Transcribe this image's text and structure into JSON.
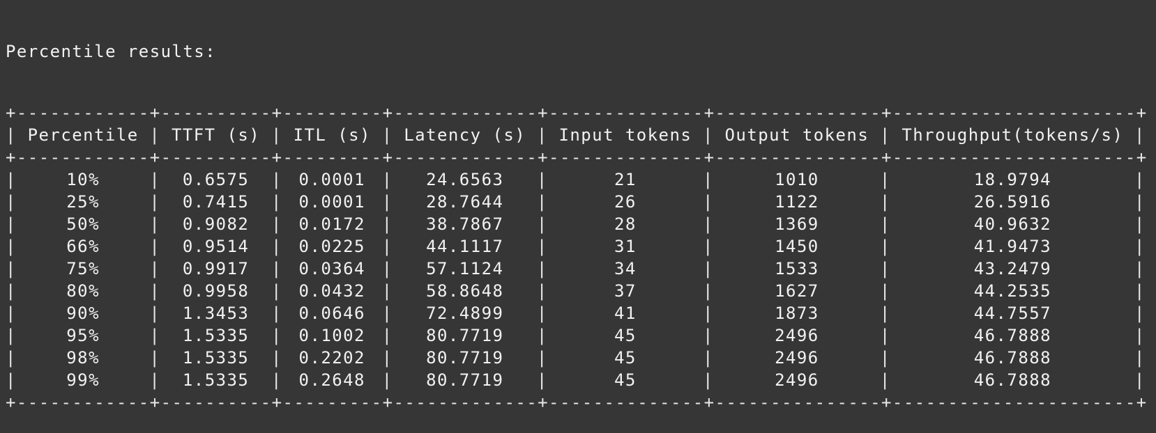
{
  "terminal": {
    "heading": "Percentile results:",
    "table": {
      "headers": [
        "Percentile",
        "TTFT (s)",
        "ITL (s)",
        "Latency (s)",
        "Input tokens",
        "Output tokens",
        "Throughput(tokens/s)"
      ],
      "rows": [
        [
          "10%",
          "0.6575",
          "0.0001",
          "24.6563",
          "21",
          "1010",
          "18.9794"
        ],
        [
          "25%",
          "0.7415",
          "0.0001",
          "28.7644",
          "26",
          "1122",
          "26.5916"
        ],
        [
          "50%",
          "0.9082",
          "0.0172",
          "38.7867",
          "28",
          "1369",
          "40.9632"
        ],
        [
          "66%",
          "0.9514",
          "0.0225",
          "44.1117",
          "31",
          "1450",
          "41.9473"
        ],
        [
          "75%",
          "0.9917",
          "0.0364",
          "57.1124",
          "34",
          "1533",
          "43.2479"
        ],
        [
          "80%",
          "0.9958",
          "0.0432",
          "58.8648",
          "37",
          "1627",
          "44.2535"
        ],
        [
          "90%",
          "1.3453",
          "0.0646",
          "72.4899",
          "41",
          "1873",
          "44.7557"
        ],
        [
          "95%",
          "1.5335",
          "0.1002",
          "80.7719",
          "45",
          "2496",
          "46.7888"
        ],
        [
          "98%",
          "1.5335",
          "0.2202",
          "80.7719",
          "45",
          "2496",
          "46.7888"
        ],
        [
          "99%",
          "1.5335",
          "0.2648",
          "80.7719",
          "45",
          "2496",
          "46.7888"
        ]
      ]
    }
  }
}
